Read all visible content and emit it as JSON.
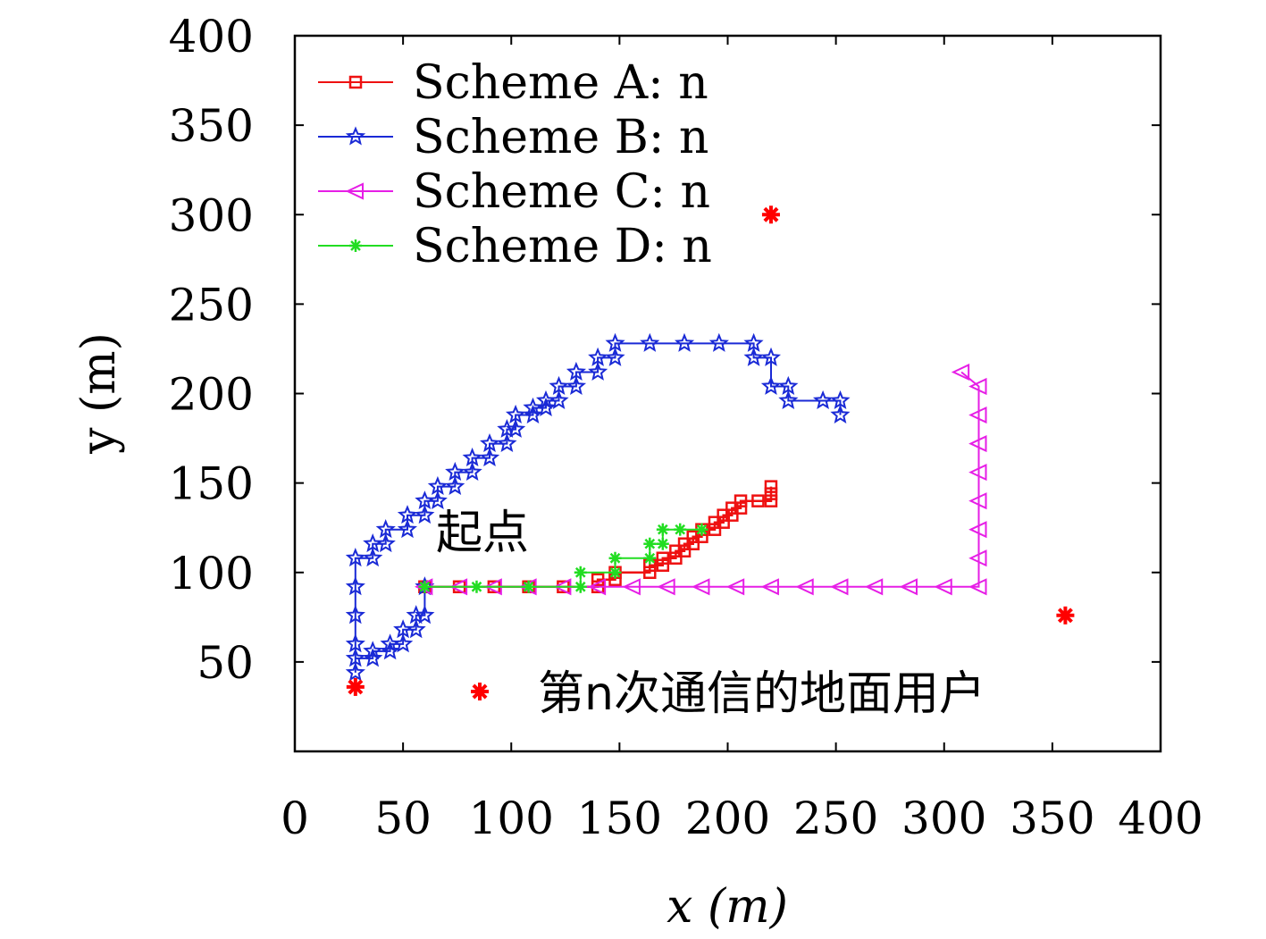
{
  "chart_data": {
    "type": "line",
    "xlabel": "x (m)",
    "ylabel": "y (m)",
    "xlim": [
      0,
      400
    ],
    "ylim": [
      0,
      400
    ],
    "xticks": [
      0,
      50,
      100,
      150,
      200,
      250,
      300,
      350,
      400
    ],
    "yticks": [
      50,
      100,
      150,
      200,
      250,
      300,
      350,
      400
    ],
    "grid": false,
    "legend_position": "top-left",
    "series": [
      {
        "name": "Scheme A: n",
        "color": "#ee1111",
        "marker": "square",
        "points": [
          [
            60,
            92
          ],
          [
            76,
            92
          ],
          [
            92,
            92
          ],
          [
            108,
            92
          ],
          [
            124,
            92
          ],
          [
            140,
            92
          ],
          [
            140,
            96
          ],
          [
            148,
            96
          ],
          [
            148,
            100
          ],
          [
            164,
            100
          ],
          [
            164,
            104
          ],
          [
            170,
            104
          ],
          [
            170,
            108
          ],
          [
            176,
            108
          ],
          [
            176,
            112
          ],
          [
            180,
            112
          ],
          [
            180,
            116
          ],
          [
            184,
            116
          ],
          [
            184,
            120
          ],
          [
            188,
            120
          ],
          [
            188,
            124
          ],
          [
            194,
            124
          ],
          [
            194,
            128
          ],
          [
            198,
            128
          ],
          [
            198,
            132
          ],
          [
            202,
            132
          ],
          [
            202,
            136
          ],
          [
            206,
            136
          ],
          [
            206,
            140
          ],
          [
            214,
            140
          ],
          [
            220,
            140
          ],
          [
            220,
            144
          ],
          [
            220,
            148
          ]
        ]
      },
      {
        "name": "Scheme B: n",
        "color": "#1a2ad6",
        "marker": "star",
        "points": [
          [
            60,
            92
          ],
          [
            60,
            76
          ],
          [
            56,
            76
          ],
          [
            56,
            68
          ],
          [
            50,
            68
          ],
          [
            50,
            60
          ],
          [
            44,
            60
          ],
          [
            44,
            56
          ],
          [
            36,
            56
          ],
          [
            36,
            52
          ],
          [
            28,
            52
          ],
          [
            28,
            44
          ],
          [
            28,
            60
          ],
          [
            28,
            76
          ],
          [
            28,
            92
          ],
          [
            28,
            108
          ],
          [
            36,
            108
          ],
          [
            36,
            116
          ],
          [
            42,
            116
          ],
          [
            42,
            124
          ],
          [
            52,
            124
          ],
          [
            52,
            132
          ],
          [
            60,
            132
          ],
          [
            60,
            140
          ],
          [
            66,
            140
          ],
          [
            66,
            148
          ],
          [
            74,
            148
          ],
          [
            74,
            156
          ],
          [
            82,
            156
          ],
          [
            82,
            164
          ],
          [
            90,
            164
          ],
          [
            90,
            172
          ],
          [
            98,
            172
          ],
          [
            98,
            180
          ],
          [
            102,
            180
          ],
          [
            102,
            188
          ],
          [
            110,
            188
          ],
          [
            110,
            192
          ],
          [
            116,
            192
          ],
          [
            116,
            196
          ],
          [
            122,
            196
          ],
          [
            122,
            204
          ],
          [
            130,
            204
          ],
          [
            130,
            212
          ],
          [
            140,
            212
          ],
          [
            140,
            220
          ],
          [
            148,
            220
          ],
          [
            148,
            228
          ],
          [
            164,
            228
          ],
          [
            180,
            228
          ],
          [
            196,
            228
          ],
          [
            212,
            228
          ],
          [
            212,
            220
          ],
          [
            220,
            220
          ],
          [
            220,
            204
          ],
          [
            228,
            204
          ],
          [
            228,
            196
          ],
          [
            244,
            196
          ],
          [
            252,
            196
          ],
          [
            252,
            188
          ]
        ]
      },
      {
        "name": "Scheme C: n",
        "color": "#e61ee6",
        "marker": "triangle-left",
        "points": [
          [
            60,
            92
          ],
          [
            76,
            92
          ],
          [
            92,
            92
          ],
          [
            108,
            92
          ],
          [
            124,
            92
          ],
          [
            140,
            92
          ],
          [
            156,
            92
          ],
          [
            172,
            92
          ],
          [
            188,
            92
          ],
          [
            204,
            92
          ],
          [
            220,
            92
          ],
          [
            236,
            92
          ],
          [
            252,
            92
          ],
          [
            268,
            92
          ],
          [
            284,
            92
          ],
          [
            300,
            92
          ],
          [
            316,
            92
          ],
          [
            316,
            108
          ],
          [
            316,
            124
          ],
          [
            316,
            140
          ],
          [
            316,
            156
          ],
          [
            316,
            172
          ],
          [
            316,
            188
          ],
          [
            316,
            204
          ],
          [
            308,
            212
          ]
        ]
      },
      {
        "name": "Scheme D: n",
        "color": "#22dd22",
        "marker": "asterisk",
        "points": [
          [
            60,
            92
          ],
          [
            84,
            92
          ],
          [
            108,
            92
          ],
          [
            132,
            92
          ],
          [
            132,
            100
          ],
          [
            148,
            100
          ],
          [
            148,
            108
          ],
          [
            164,
            108
          ],
          [
            164,
            116
          ],
          [
            170,
            116
          ],
          [
            170,
            124
          ],
          [
            178,
            124
          ],
          [
            188,
            124
          ]
        ]
      }
    ],
    "ground_users": {
      "color": "#ff0000",
      "marker": "asterisk",
      "points": [
        [
          28,
          36
        ],
        [
          220,
          300
        ],
        [
          356,
          76
        ]
      ]
    },
    "annotations": {
      "start_label": "起点",
      "users_legend_label": "第n次通信的地面用户"
    }
  }
}
